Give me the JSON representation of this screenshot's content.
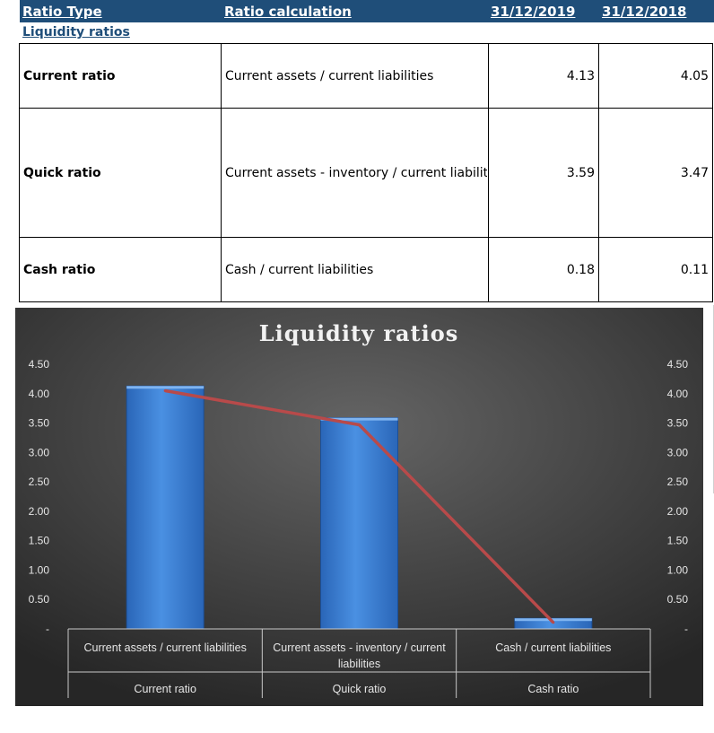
{
  "header": {
    "ratio_type": "Ratio Type",
    "ratio_calculation": "Ratio calculation",
    "col_2019": "31/12/2019",
    "col_2018": "31/12/2018"
  },
  "section_title": "Liquidity ratios",
  "rows": [
    {
      "type": "Current ratio",
      "calculation": "Current assets / current liabilities",
      "v2019": "4.13",
      "v2018": "4.05"
    },
    {
      "type": "Quick ratio",
      "calculation": "Current assets - inventory / current liabilities",
      "v2019": "3.59",
      "v2018": "3.47"
    },
    {
      "type": "Cash ratio",
      "calculation": "Cash / current liabilities",
      "v2019": "0.18",
      "v2018": "0.11"
    }
  ],
  "colors": {
    "header_bg": "#1f4e79",
    "bar": "#3a7fd6",
    "line": "#b84a4a"
  },
  "chart_data": {
    "type": "bar",
    "title": "Liquidity ratios",
    "categories": [
      {
        "calc_lines": [
          "Current assets / current liabilities"
        ],
        "name": "Current ratio"
      },
      {
        "calc_lines": [
          "Current assets - inventory / current",
          "liabilities"
        ],
        "name": "Quick ratio"
      },
      {
        "calc_lines": [
          "Cash / current liabilities"
        ],
        "name": "Cash ratio"
      }
    ],
    "series": [
      {
        "kind": "bar",
        "values": [
          4.13,
          3.59,
          0.18
        ]
      },
      {
        "kind": "line",
        "values": [
          4.05,
          3.47,
          0.11
        ]
      }
    ],
    "ylim": [
      0,
      4.5
    ],
    "yticks": [
      {
        "value": 0,
        "label": "-"
      },
      {
        "value": 0.5,
        "label": "0.50"
      },
      {
        "value": 1.0,
        "label": "1.00"
      },
      {
        "value": 1.5,
        "label": "1.50"
      },
      {
        "value": 2.0,
        "label": "2.00"
      },
      {
        "value": 2.5,
        "label": "2.50"
      },
      {
        "value": 3.0,
        "label": "3.00"
      },
      {
        "value": 3.5,
        "label": "3.50"
      },
      {
        "value": 4.0,
        "label": "4.00"
      },
      {
        "value": 4.5,
        "label": "4.50"
      }
    ],
    "secondary_axis": true,
    "grid": false,
    "legend": "none"
  }
}
